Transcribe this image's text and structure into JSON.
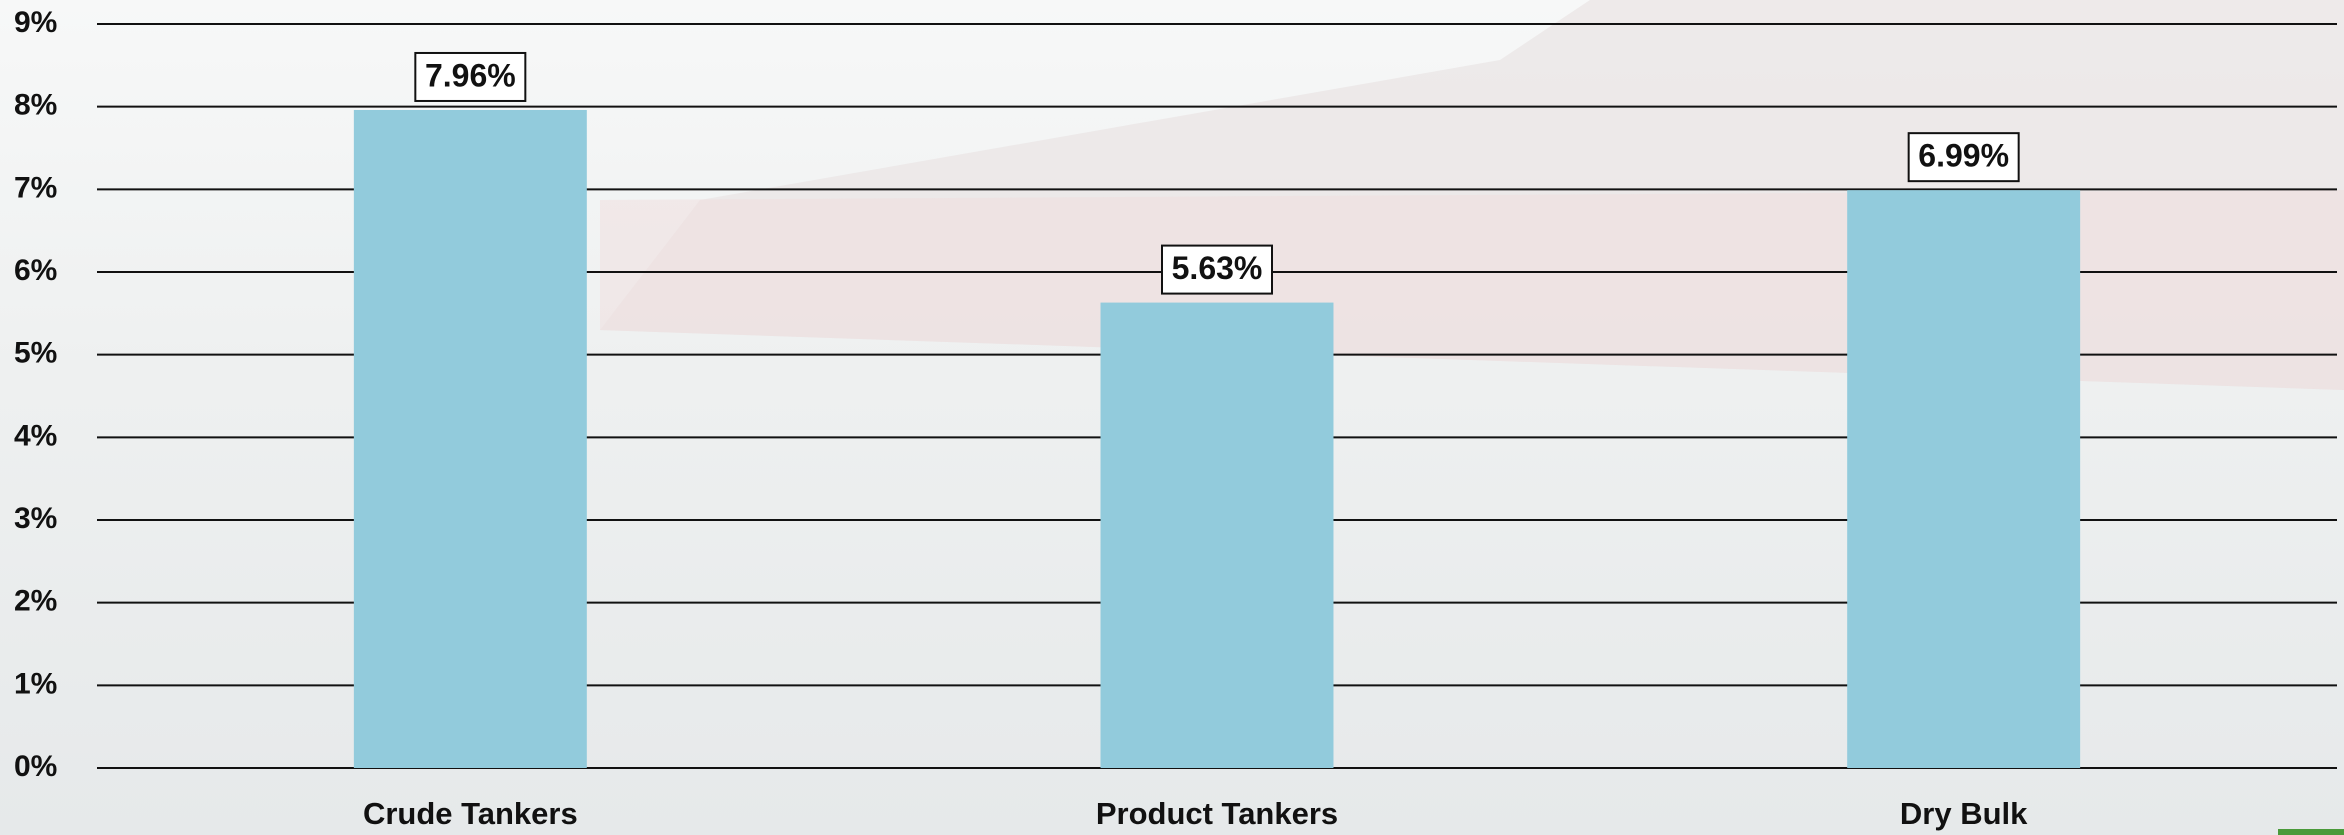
{
  "chart_data": {
    "type": "bar",
    "categories": [
      "Crude Tankers",
      "Product Tankers",
      "Dry Bulk"
    ],
    "values": [
      7.96,
      5.63,
      6.99
    ],
    "value_labels": [
      "7.96%",
      "5.63%",
      "6.99%"
    ],
    "color": "#92cbdc",
    "ylim": [
      0,
      9
    ],
    "yticks": [
      {
        "value": 0,
        "label": "0%"
      },
      {
        "value": 1,
        "label": "1%"
      },
      {
        "value": 2,
        "label": "2%"
      },
      {
        "value": 3,
        "label": "3%"
      },
      {
        "value": 4,
        "label": "4%"
      },
      {
        "value": 5,
        "label": "5%"
      },
      {
        "value": 6,
        "label": "6%"
      },
      {
        "value": 7,
        "label": "7%"
      },
      {
        "value": 8,
        "label": "8%"
      },
      {
        "value": 9,
        "label": "9%"
      }
    ],
    "grid": true
  }
}
